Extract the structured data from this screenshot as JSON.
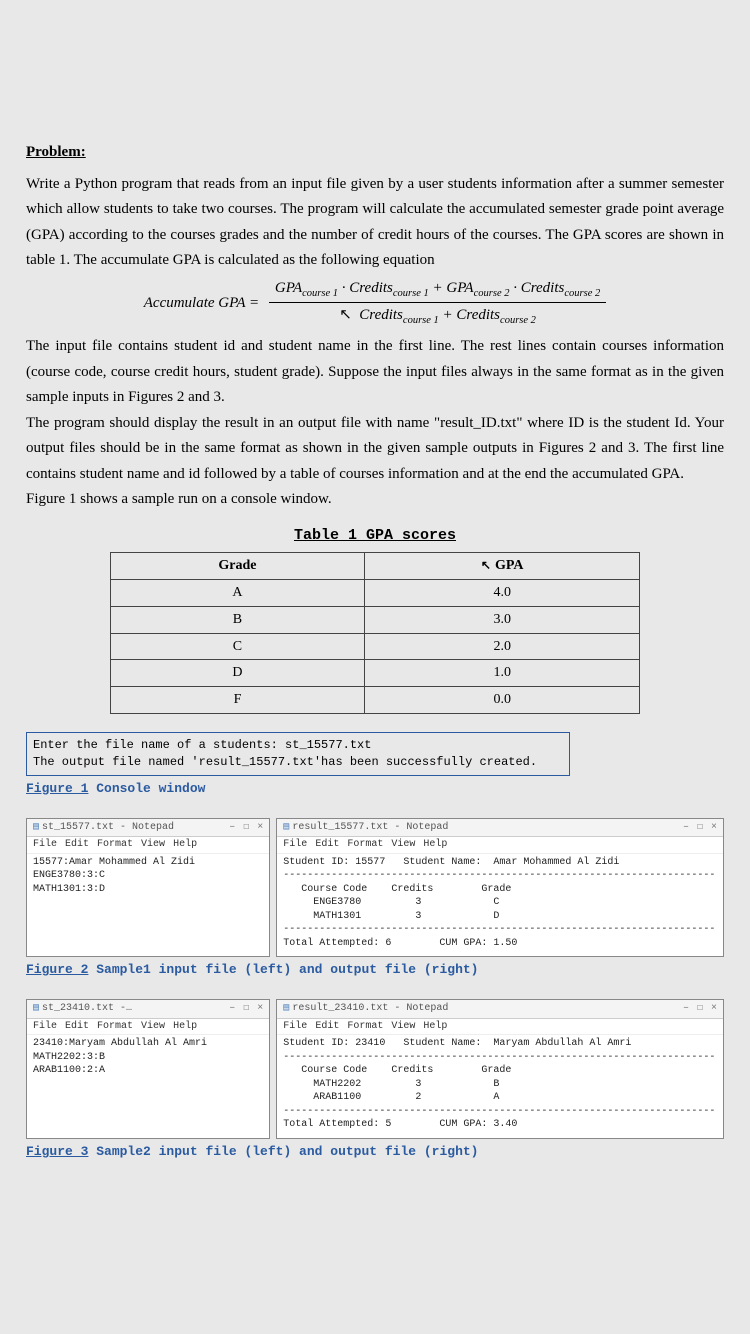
{
  "heading": "Problem:",
  "para1": "Write a Python program that reads from an input file given by a user students information after a summer semester which allow students to take two courses. The program will calculate the accumulated semester grade point average (GPA) according to the courses grades and the number of credit hours of the courses. The GPA scores are shown in table 1. The accumulate GPA is calculated as the following equation",
  "formula": {
    "label": "Accumulate GPA =",
    "numerator": "GPAcourse 1 · Creditscourse 1 + GPAcourse 2 · Creditscourse 2",
    "denominator": "Creditscourse 1 + Creditscourse 2"
  },
  "para2": "The input file contains student id and student name in the first line. The rest lines contain courses information (course code, course credit hours, student grade). Suppose the input files always in the same format as in the given sample inputs in Figures 2 and 3.",
  "para3": "The program should display the result in an output file with name \"result_ID.txt\" where ID is the student Id. Your output files should be in the same format as shown in the given sample outputs in Figures 2 and 3. The first line contains student name and id followed by a table of courses information and at the end the accumulated GPA.",
  "para4": "Figure 1 shows a sample run on a console window.",
  "table": {
    "caption": "Table 1 GPA scores",
    "headers": [
      "Grade",
      "GPA"
    ],
    "rows": [
      [
        "A",
        "4.0"
      ],
      [
        "B",
        "3.0"
      ],
      [
        "C",
        "2.0"
      ],
      [
        "D",
        "1.0"
      ],
      [
        "F",
        "0.0"
      ]
    ]
  },
  "console": {
    "line1": "Enter the file name of a students: st_15577.txt",
    "line2": " The output file named 'result_15577.txt'has been successfully created."
  },
  "fig1": {
    "num": "Figure 1",
    "rest": " Console window"
  },
  "menus": [
    "File",
    "Edit",
    "Format",
    "View",
    "Help"
  ],
  "sample1": {
    "input": {
      "title": "st_15577.txt - Notepad",
      "body": "15577:Amar Mohammed Al Zidi\nENGE3780:3:C\nMATH1301:3:D"
    },
    "output": {
      "title": "result_15577.txt - Notepad",
      "body": "Student ID: 15577   Student Name:  Amar Mohammed Al Zidi\n------------------------------------------------------------------------\n   Course Code    Credits        Grade\n     ENGE3780         3            C\n     MATH1301         3            D\n------------------------------------------------------------------------\nTotal Attempted: 6        CUM GPA: 1.50"
    }
  },
  "fig2": {
    "num": "Figure 2",
    "rest": " Sample1 input file (left) and output file (right)"
  },
  "sample2": {
    "input": {
      "title": "st_23410.txt -…",
      "body": "23410:Maryam Abdullah Al Amri\nMATH2202:3:B\nARAB1100:2:A"
    },
    "output": {
      "title": "result_23410.txt - Notepad",
      "body": "Student ID: 23410   Student Name:  Maryam Abdullah Al Amri\n------------------------------------------------------------------------\n   Course Code    Credits        Grade\n     MATH2202         3            B\n     ARAB1100         2            A\n------------------------------------------------------------------------\nTotal Attempted: 5        CUM GPA: 3.40"
    }
  },
  "fig3": {
    "num": "Figure 3",
    "rest": " Sample2 input file (left) and output file (right)"
  },
  "winctrl": {
    "min": "–",
    "max": "☐",
    "close": "×"
  }
}
